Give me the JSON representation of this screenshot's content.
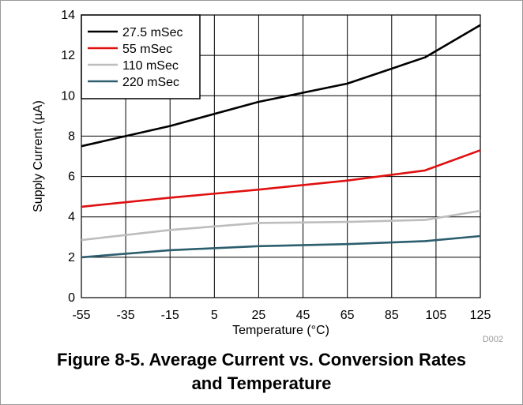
{
  "caption": {
    "line1": "Figure 8-5. Average Current vs. Conversion Rates",
    "line2": "and Temperature"
  },
  "figure_id": "D002",
  "colors": {
    "grid": "#000000",
    "series": [
      "#000000",
      "#e01010",
      "#bdbdbd",
      "#2c5e6e"
    ]
  },
  "chart_data": {
    "type": "line",
    "xlabel": "Temperature (°C)",
    "ylabel": "Supply Current (µA)",
    "xlim": [
      -55,
      125
    ],
    "ylim": [
      0,
      14
    ],
    "xticks": [
      -55,
      -35,
      -15,
      5,
      25,
      45,
      65,
      85,
      105,
      125
    ],
    "yticks": [
      0,
      2,
      4,
      6,
      8,
      10,
      12,
      14
    ],
    "grid": true,
    "legend_position": "top-left",
    "series": [
      {
        "name": "27.5 mSec",
        "x": [
          -55,
          -35,
          -15,
          25,
          65,
          100,
          125
        ],
        "y": [
          7.5,
          8.0,
          8.5,
          9.7,
          10.6,
          11.9,
          13.5
        ]
      },
      {
        "name": "55 mSec",
        "x": [
          -55,
          -15,
          25,
          65,
          100,
          125
        ],
        "y": [
          4.5,
          4.95,
          5.35,
          5.8,
          6.3,
          7.3
        ]
      },
      {
        "name": "110 mSec",
        "x": [
          -55,
          -15,
          25,
          65,
          100,
          125
        ],
        "y": [
          2.85,
          3.35,
          3.7,
          3.75,
          3.85,
          4.3
        ]
      },
      {
        "name": "220 mSec",
        "x": [
          -55,
          -15,
          25,
          65,
          100,
          125
        ],
        "y": [
          2.0,
          2.35,
          2.55,
          2.65,
          2.8,
          3.05
        ]
      }
    ]
  }
}
